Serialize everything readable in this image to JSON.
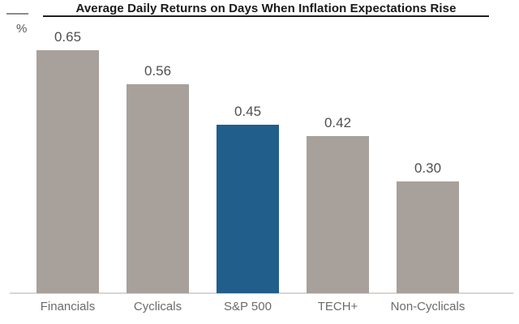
{
  "chart_data": {
    "type": "bar",
    "title": "Average Daily Returns on Days When Inflation Expectations Rise",
    "ylabel": "%",
    "xlabel": "",
    "categories": [
      "Financials",
      "Cyclicals",
      "S&P 500",
      "TECH+",
      "Non-Cyclicals"
    ],
    "values": [
      0.65,
      0.56,
      0.45,
      0.42,
      0.3
    ],
    "value_labels": [
      "0.65",
      "0.56",
      "0.45",
      "0.42",
      "0.30"
    ],
    "ylim": [
      0,
      0.78
    ],
    "grid": false,
    "legend": "none",
    "highlight_category": "S&P 500",
    "colors": {
      "bar_default": "#a8a09a",
      "bar_highlight": "#215e8c",
      "axis_line": "#d8d6d3",
      "title_text": "#1a1a1a",
      "value_text": "#4f4f4f",
      "category_text": "#6b6b6b"
    },
    "bar_colors": [
      "#a8a09a",
      "#a8a09a",
      "#215e8c",
      "#a8a09a",
      "#a8a09a"
    ]
  }
}
